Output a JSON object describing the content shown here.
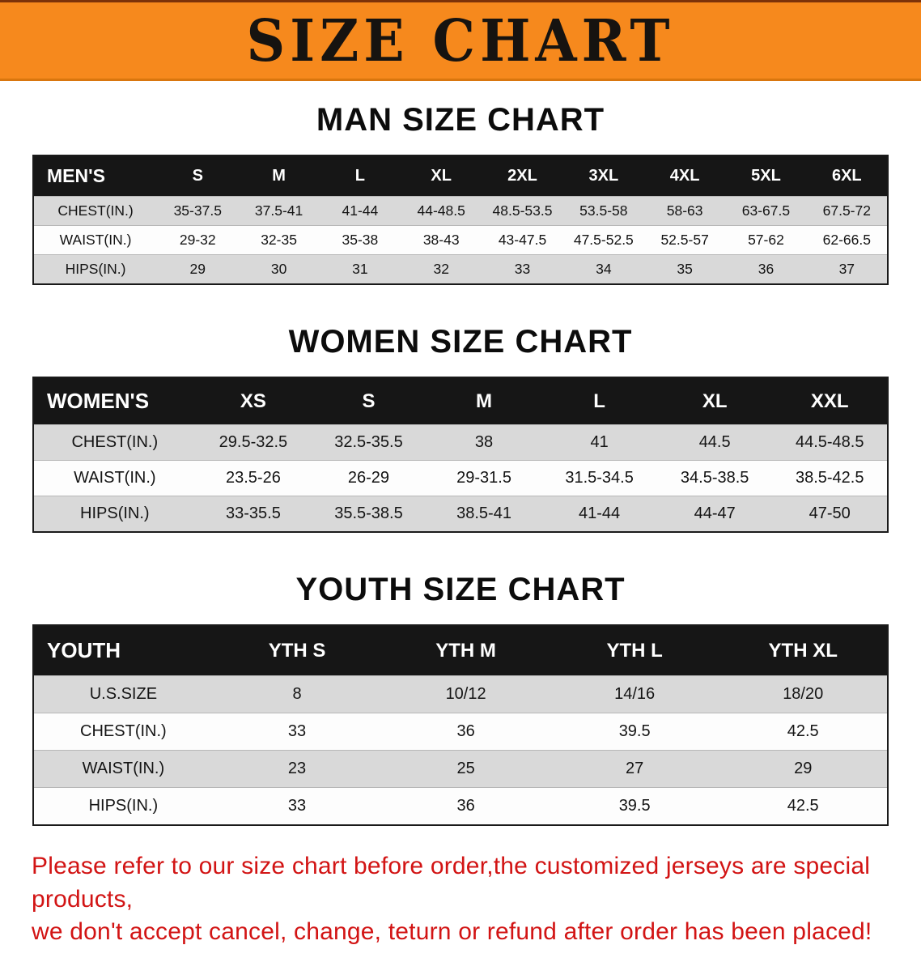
{
  "banner": {
    "title": "SIZE CHART"
  },
  "theme": {
    "banner_orange": "#f6891d",
    "table_header_black": "#161616",
    "row_stripe_gray": "#d9d9d9",
    "disclaimer_red": "#d21414"
  },
  "sections": [
    {
      "heading": "MAN SIZE CHART",
      "table": {
        "header": [
          "MEN'S",
          "S",
          "M",
          "L",
          "XL",
          "2XL",
          "3XL",
          "4XL",
          "5XL",
          "6XL"
        ],
        "rows": [
          [
            "CHEST(IN.)",
            "35-37.5",
            "37.5-41",
            "41-44",
            "44-48.5",
            "48.5-53.5",
            "53.5-58",
            "58-63",
            "63-67.5",
            "67.5-72"
          ],
          [
            "WAIST(IN.)",
            "29-32",
            "32-35",
            "35-38",
            "38-43",
            "43-47.5",
            "47.5-52.5",
            "52.5-57",
            "57-62",
            "62-66.5"
          ],
          [
            "HIPS(IN.)",
            "29",
            "30",
            "31",
            "32",
            "33",
            "34",
            "35",
            "36",
            "37"
          ]
        ]
      }
    },
    {
      "heading": "WOMEN SIZE CHART",
      "table": {
        "header": [
          "WOMEN'S",
          "XS",
          "S",
          "M",
          "L",
          "XL",
          "XXL"
        ],
        "rows": [
          [
            "CHEST(IN.)",
            "29.5-32.5",
            "32.5-35.5",
            "38",
            "41",
            "44.5",
            "44.5-48.5"
          ],
          [
            "WAIST(IN.)",
            "23.5-26",
            "26-29",
            "29-31.5",
            "31.5-34.5",
            "34.5-38.5",
            "38.5-42.5"
          ],
          [
            "HIPS(IN.)",
            "33-35.5",
            "35.5-38.5",
            "38.5-41",
            "41-44",
            "44-47",
            "47-50"
          ]
        ]
      }
    },
    {
      "heading": "YOUTH SIZE CHART",
      "table": {
        "header": [
          "YOUTH",
          "YTH S",
          "YTH M",
          "YTH L",
          "YTH XL"
        ],
        "rows": [
          [
            "U.S.SIZE",
            "8",
            "10/12",
            "14/16",
            "18/20"
          ],
          [
            "CHEST(IN.)",
            "33",
            "36",
            "39.5",
            "42.5"
          ],
          [
            "WAIST(IN.)",
            "23",
            "25",
            "27",
            "29"
          ],
          [
            "HIPS(IN.)",
            "33",
            "36",
            "39.5",
            "42.5"
          ]
        ]
      }
    }
  ],
  "disclaimer": {
    "line1": "Please refer to our size chart before order,the customized jerseys are special products,",
    "line2": "we don't accept cancel, change, teturn or refund after order has been placed!"
  }
}
